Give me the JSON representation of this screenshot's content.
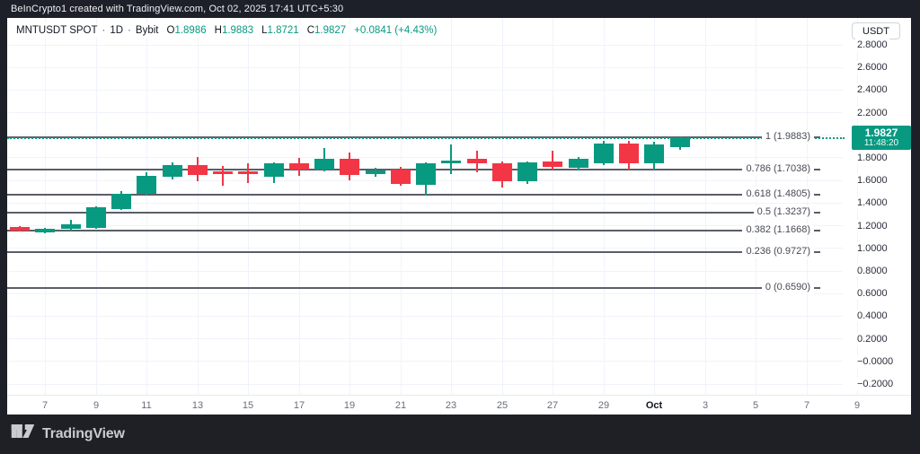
{
  "frame": {
    "attribution": "BeInCrypto1 created with TradingView.com, Oct 02, 2025 17:41 UTC+5:30",
    "brand_name": "TradingView"
  },
  "legend": {
    "symbol_text": "MNTUSDT SPOT",
    "sep1": "·",
    "interval": "1D",
    "sep2": "·",
    "exchange": "Bybit",
    "ohlc": [
      {
        "label": "O",
        "value": "1.8986"
      },
      {
        "label": "H",
        "value": "1.9883"
      },
      {
        "label": "L",
        "value": "1.8721"
      },
      {
        "label": "C",
        "value": "1.9827"
      }
    ],
    "change": "+0.0841 (+4.43%)"
  },
  "price_scale": {
    "currency_button": "USDT",
    "ticks": [
      {
        "label": "2.8000",
        "value": 2.8
      },
      {
        "label": "2.6000",
        "value": 2.6
      },
      {
        "label": "2.4000",
        "value": 2.4
      },
      {
        "label": "2.2000",
        "value": 2.2
      },
      {
        "label": "1.8000",
        "value": 1.8
      },
      {
        "label": "1.6000",
        "value": 1.6
      },
      {
        "label": "1.4000",
        "value": 1.4
      },
      {
        "label": "1.2000",
        "value": 1.2
      },
      {
        "label": "1.0000",
        "value": 1.0
      },
      {
        "label": "0.8000",
        "value": 0.8
      },
      {
        "label": "0.6000",
        "value": 0.6
      },
      {
        "label": "0.4000",
        "value": 0.4
      },
      {
        "label": "0.2000",
        "value": 0.2
      },
      {
        "label": "−0.0000",
        "value": 0.0
      },
      {
        "label": "−0.2000",
        "value": -0.2
      }
    ],
    "last": {
      "price": "1.9827",
      "time": "11:48:20",
      "value": 1.9827
    }
  },
  "time_scale": {
    "labels": [
      {
        "text": "7",
        "i": 1
      },
      {
        "text": "9",
        "i": 3
      },
      {
        "text": "11",
        "i": 5
      },
      {
        "text": "13",
        "i": 7
      },
      {
        "text": "15",
        "i": 9
      },
      {
        "text": "17",
        "i": 11
      },
      {
        "text": "19",
        "i": 13
      },
      {
        "text": "21",
        "i": 15
      },
      {
        "text": "23",
        "i": 17
      },
      {
        "text": "25",
        "i": 19
      },
      {
        "text": "27",
        "i": 21
      },
      {
        "text": "29",
        "i": 23
      },
      {
        "text": "Oct",
        "i": 25,
        "bold": true
      },
      {
        "text": "3",
        "i": 27
      },
      {
        "text": "5",
        "i": 29
      },
      {
        "text": "7",
        "i": 31
      },
      {
        "text": "9",
        "i": 33
      }
    ]
  },
  "colors": {
    "up": "#089981",
    "down": "#f23645",
    "fib_line": "#5b5e67",
    "grid": "#f0f3fa",
    "accent_text": "#089981"
  },
  "chart_data": {
    "type": "candlestick",
    "title": "MNTUSDT SPOT · 1D · Bybit",
    "symbol": "MNTUSDT",
    "market": "SPOT",
    "interval": "1D",
    "exchange": "Bybit",
    "currency": "USDT",
    "y_axis_visible_range": [
      -0.3,
      2.9
    ],
    "grid_prices": [
      2.8,
      2.6,
      2.4,
      2.2,
      2.0,
      1.8,
      1.6,
      1.4,
      1.2,
      1.0,
      0.8,
      0.6,
      0.4,
      0.2,
      0.0,
      -0.2
    ],
    "legend_position": "top-left",
    "grid": true,
    "fib_levels": [
      {
        "label": "1 (1.9883)",
        "level": "1",
        "price": 1.9883
      },
      {
        "label": "0.786 (1.7038)",
        "level": "0.786",
        "price": 1.7038
      },
      {
        "label": "0.618 (1.4805)",
        "level": "0.618",
        "price": 1.4805
      },
      {
        "label": "0.5 (1.3237)",
        "level": "0.5",
        "price": 1.3237
      },
      {
        "label": "0.382 (1.1668)",
        "level": "0.382",
        "price": 1.1668
      },
      {
        "label": "0.236 (0.9727)",
        "level": "0.236",
        "price": 0.9727
      },
      {
        "label": "0 (0.6590)",
        "level": "0",
        "price": 0.659
      }
    ],
    "last_price": 1.9827,
    "last_time": "11:48:20",
    "change": "+0.0841",
    "change_pct": "+4.43%",
    "candles": [
      {
        "date": "Sep 6",
        "o": 1.19,
        "h": 1.2,
        "l": 1.15,
        "c": 1.16
      },
      {
        "date": "Sep 7",
        "o": 1.14,
        "h": 1.18,
        "l": 1.13,
        "c": 1.17
      },
      {
        "date": "Sep 8",
        "o": 1.17,
        "h": 1.25,
        "l": 1.16,
        "c": 1.21
      },
      {
        "date": "Sep 9",
        "o": 1.18,
        "h": 1.37,
        "l": 1.17,
        "c": 1.36
      },
      {
        "date": "Sep 10",
        "o": 1.35,
        "h": 1.51,
        "l": 1.34,
        "c": 1.48
      },
      {
        "date": "Sep 11",
        "o": 1.48,
        "h": 1.67,
        "l": 1.47,
        "c": 1.64
      },
      {
        "date": "Sep 12",
        "o": 1.63,
        "h": 1.76,
        "l": 1.61,
        "c": 1.74
      },
      {
        "date": "Sep 13",
        "o": 1.74,
        "h": 1.81,
        "l": 1.59,
        "c": 1.65
      },
      {
        "date": "Sep 14",
        "o": 1.68,
        "h": 1.73,
        "l": 1.55,
        "c": 1.66
      },
      {
        "date": "Sep 15",
        "o": 1.68,
        "h": 1.75,
        "l": 1.58,
        "c": 1.66
      },
      {
        "date": "Sep 16",
        "o": 1.63,
        "h": 1.76,
        "l": 1.58,
        "c": 1.75
      },
      {
        "date": "Sep 17",
        "o": 1.75,
        "h": 1.8,
        "l": 1.64,
        "c": 1.7
      },
      {
        "date": "Sep 18",
        "o": 1.7,
        "h": 1.89,
        "l": 1.68,
        "c": 1.79
      },
      {
        "date": "Sep 19",
        "o": 1.79,
        "h": 1.85,
        "l": 1.6,
        "c": 1.65
      },
      {
        "date": "Sep 20",
        "o": 1.66,
        "h": 1.71,
        "l": 1.63,
        "c": 1.69
      },
      {
        "date": "Sep 21",
        "o": 1.7,
        "h": 1.72,
        "l": 1.55,
        "c": 1.57
      },
      {
        "date": "Sep 22",
        "o": 1.56,
        "h": 1.76,
        "l": 1.47,
        "c": 1.75
      },
      {
        "date": "Sep 23",
        "o": 1.75,
        "h": 1.92,
        "l": 1.66,
        "c": 1.78
      },
      {
        "date": "Sep 24",
        "o": 1.79,
        "h": 1.86,
        "l": 1.67,
        "c": 1.75
      },
      {
        "date": "Sep 25",
        "o": 1.75,
        "h": 1.77,
        "l": 1.54,
        "c": 1.59
      },
      {
        "date": "Sep 26",
        "o": 1.59,
        "h": 1.77,
        "l": 1.57,
        "c": 1.76
      },
      {
        "date": "Sep 27",
        "o": 1.77,
        "h": 1.86,
        "l": 1.7,
        "c": 1.72
      },
      {
        "date": "Sep 28",
        "o": 1.71,
        "h": 1.81,
        "l": 1.69,
        "c": 1.79
      },
      {
        "date": "Sep 29",
        "o": 1.75,
        "h": 1.95,
        "l": 1.74,
        "c": 1.93
      },
      {
        "date": "Sep 30",
        "o": 1.93,
        "h": 1.95,
        "l": 1.7,
        "c": 1.75
      },
      {
        "date": "Oct 1",
        "o": 1.75,
        "h": 1.94,
        "l": 1.7,
        "c": 1.92
      },
      {
        "date": "Oct 2",
        "o": 1.8986,
        "h": 1.9883,
        "l": 1.8721,
        "c": 1.9827
      }
    ]
  }
}
